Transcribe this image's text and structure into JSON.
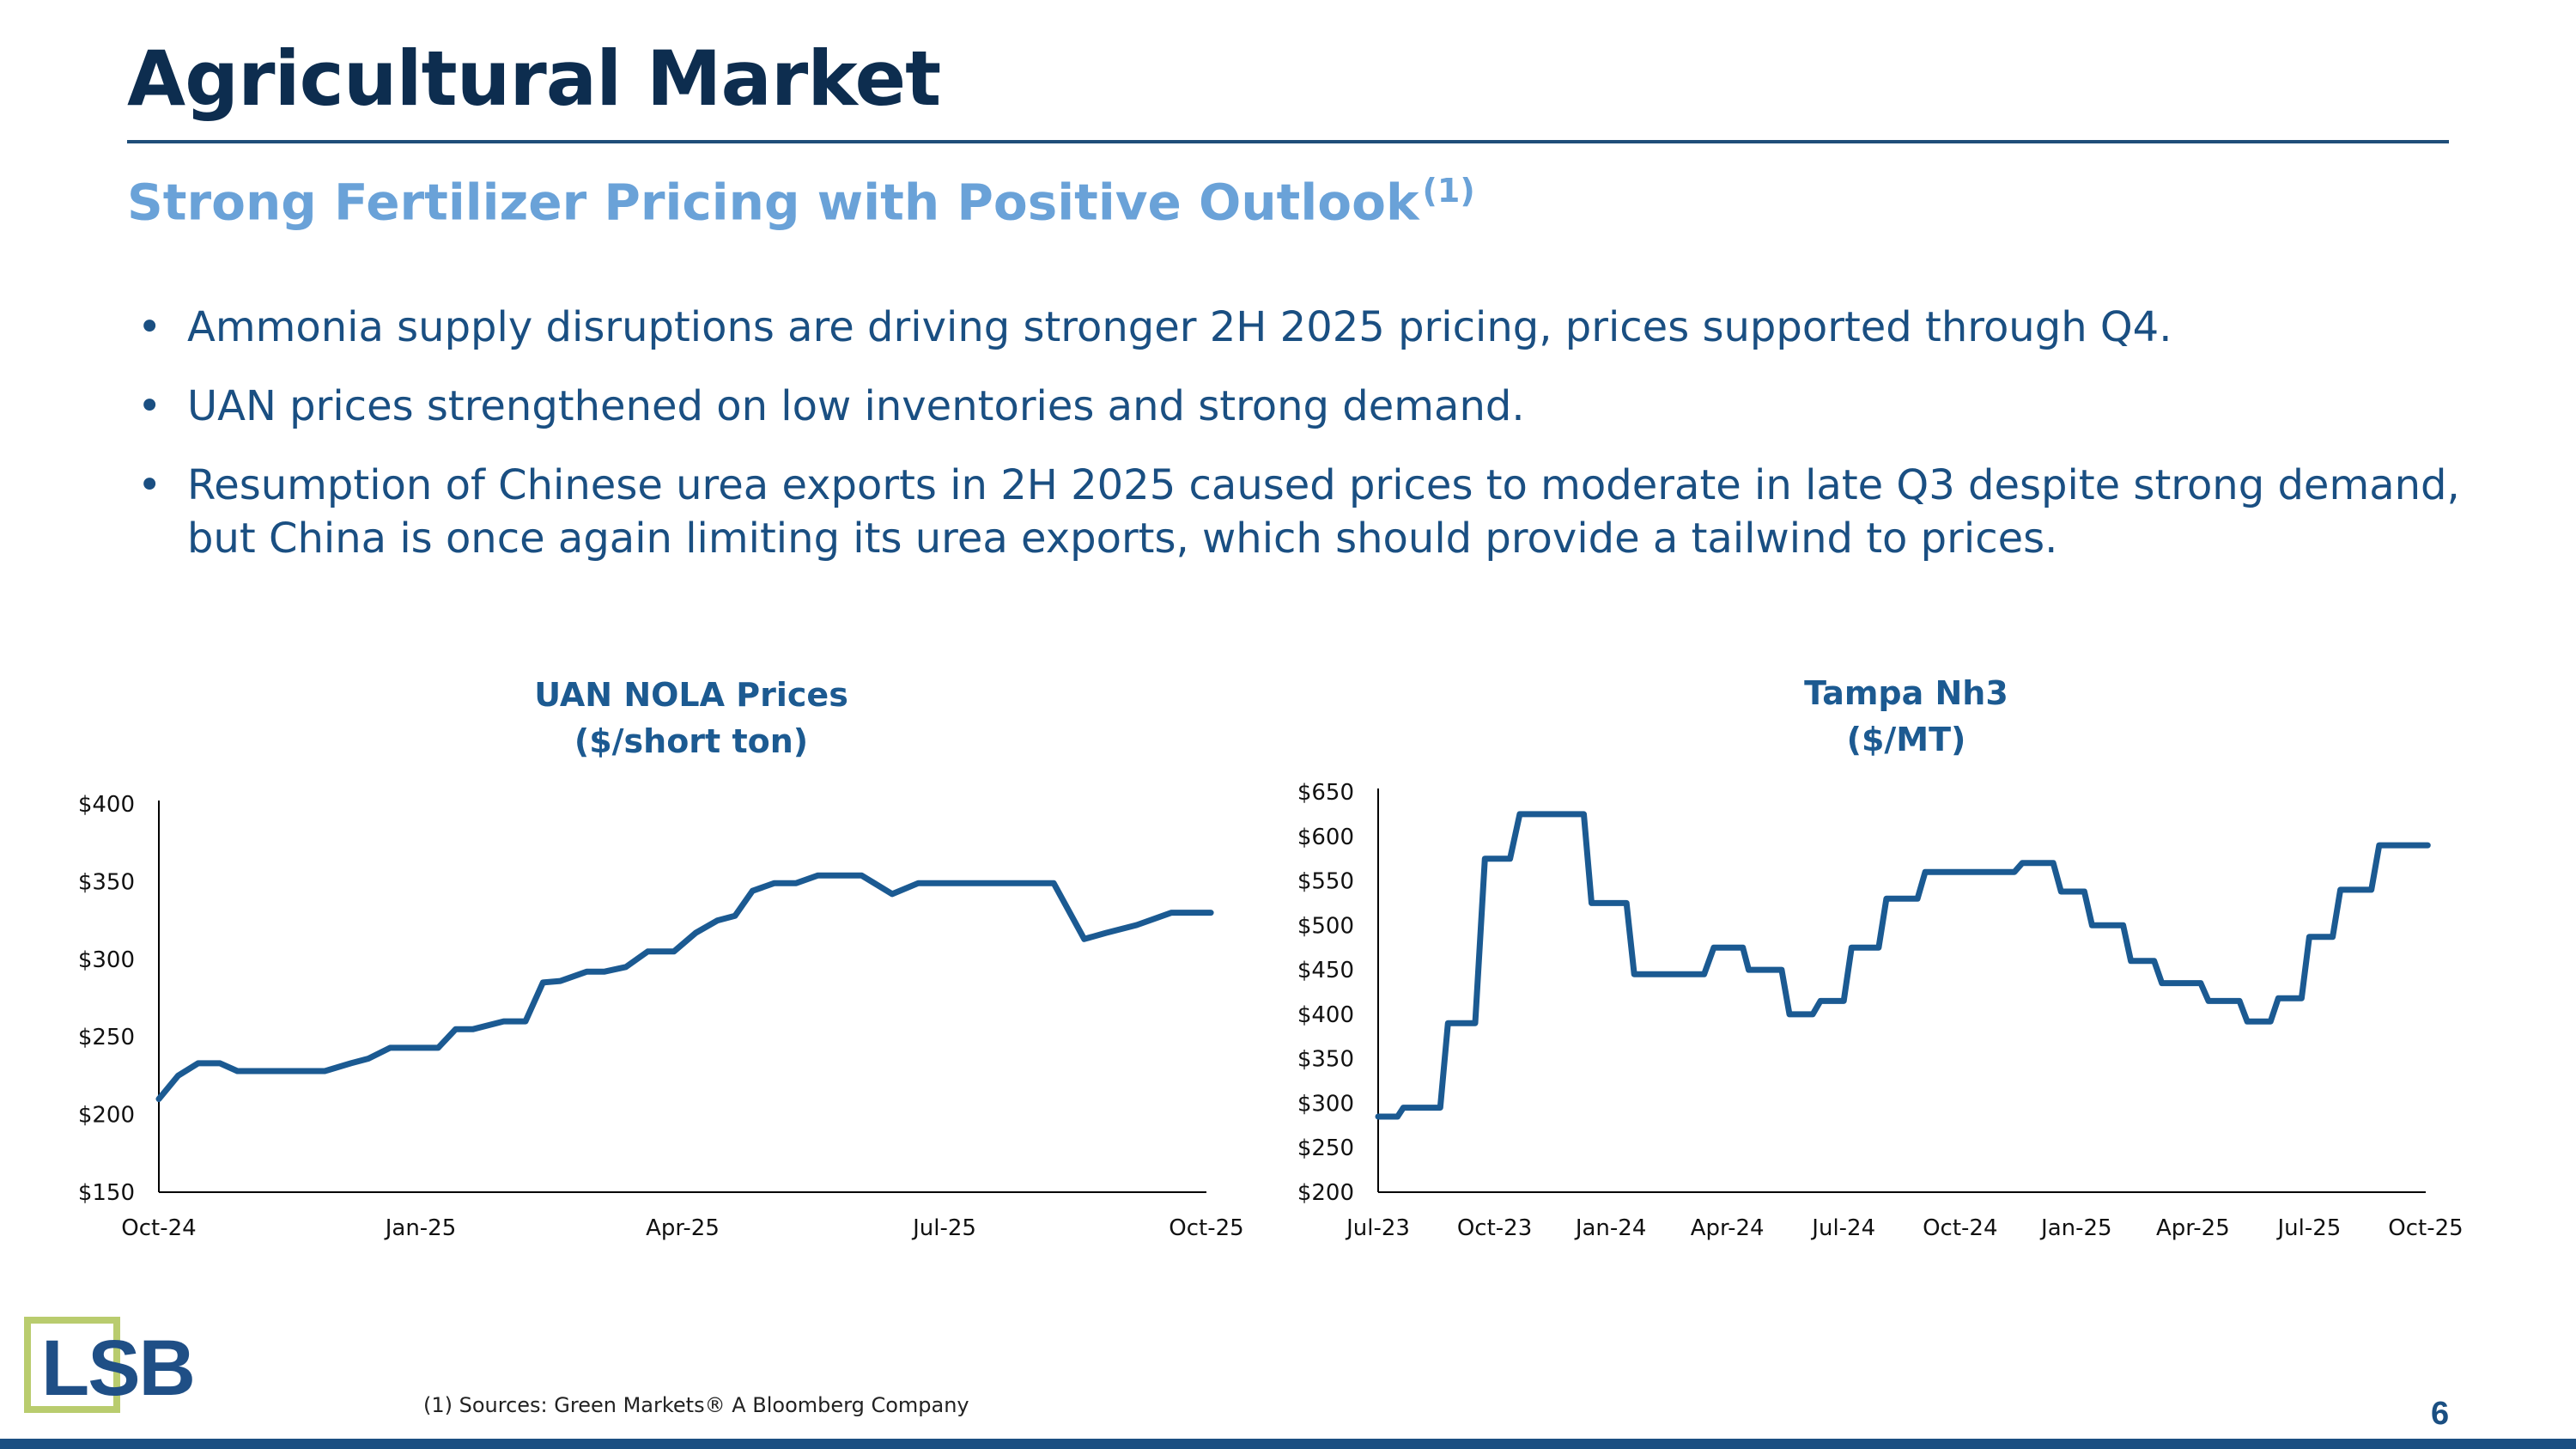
{
  "slide": {
    "title": "Agricultural Market",
    "subtitle": "Strong Fertilizer Pricing with Positive Outlook",
    "subtitle_note": "(1)",
    "bullets": [
      "Ammonia supply disruptions are driving stronger 2H 2025 pricing, prices supported through Q4.",
      "UAN prices strengthened on low inventories and strong demand.",
      "Resumption of Chinese urea exports in 2H 2025 caused prices to moderate in late Q3 despite strong demand, but China is once again limiting its urea exports, which should provide a tailwind to prices."
    ],
    "footnote": "(1)    Sources: Green Markets® A Bloomberg Company",
    "page_number": "6",
    "logo_text": "LSB"
  },
  "colors": {
    "navy": "#0d2d4f",
    "accent_blue": "#6aa2d8",
    "line": "#1b5a92",
    "logo_green": "#b9cc6e"
  },
  "chart_data": [
    {
      "type": "line",
      "title": "UAN NOLA Prices",
      "subtitle": "($/short ton)",
      "xlabel": "",
      "ylabel": "",
      "ylim": [
        150,
        400
      ],
      "y_ticks": [
        150,
        200,
        250,
        300,
        350,
        400
      ],
      "y_tick_labels": [
        "$150",
        "$200",
        "$250",
        "$300",
        "$350",
        "$400"
      ],
      "x_range": [
        0,
        12
      ],
      "x_tick_positions": [
        0,
        3,
        6,
        9,
        12
      ],
      "x_tick_labels": [
        "Oct-24",
        "Jan-25",
        "Apr-25",
        "Jul-25",
        "Oct-25"
      ],
      "series": [
        {
          "name": "UAN NOLA",
          "x": [
            0,
            0.22,
            0.45,
            0.7,
            0.9,
            1.15,
            1.4,
            1.9,
            2.2,
            2.4,
            2.65,
            2.95,
            3.2,
            3.4,
            3.6,
            3.95,
            4.2,
            4.4,
            4.6,
            4.9,
            5.1,
            5.35,
            5.6,
            5.9,
            6.15,
            6.4,
            6.6,
            6.8,
            7.05,
            7.3,
            7.55,
            7.8,
            8.05,
            8.4,
            8.7,
            9.0,
            9.4,
            9.65,
            9.95,
            10.25,
            10.6,
            10.85,
            11.2,
            11.6,
            12.05
          ],
          "y": [
            210,
            225,
            233,
            233,
            228,
            228,
            228,
            228,
            233,
            236,
            243,
            243,
            243,
            255,
            255,
            260,
            260,
            285,
            286,
            292,
            292,
            295,
            305,
            305,
            317,
            325,
            328,
            344,
            349,
            349,
            354,
            354,
            354,
            342,
            349,
            349,
            349,
            349,
            349,
            349,
            313,
            317,
            322,
            330,
            330
          ]
        }
      ]
    },
    {
      "type": "line",
      "title": "Tampa Nh3",
      "subtitle": "($/MT)",
      "xlabel": "",
      "ylabel": "",
      "ylim": [
        200,
        650
      ],
      "y_ticks": [
        200,
        250,
        300,
        350,
        400,
        450,
        500,
        550,
        600,
        650
      ],
      "y_tick_labels": [
        "$200",
        "$250",
        "$300",
        "$350",
        "$400",
        "$450",
        "$500",
        "$550",
        "$600",
        "$650"
      ],
      "x_range": [
        0,
        27
      ],
      "x_tick_positions": [
        0,
        3,
        6,
        9,
        12,
        15,
        18,
        21,
        24,
        27
      ],
      "x_tick_labels": [
        "Jul-23",
        "Oct-23",
        "Jan-24",
        "Apr-24",
        "Jul-24",
        "Oct-24",
        "Jan-25",
        "Apr-25",
        "Jul-25",
        "Oct-25"
      ],
      "series": [
        {
          "name": "Tampa Nh3",
          "x": [
            0,
            0.5,
            0.65,
            1.6,
            1.8,
            2.5,
            2.75,
            3.4,
            3.65,
            5.3,
            5.5,
            6.4,
            6.6,
            8.4,
            8.65,
            9.4,
            9.55,
            10.4,
            10.6,
            11.2,
            11.4,
            12.0,
            12.2,
            12.9,
            13.1,
            13.9,
            14.1,
            14.9,
            15.1,
            16.4,
            16.6,
            17.4,
            17.6,
            18.2,
            18.4,
            19.2,
            19.4,
            20.0,
            20.2,
            21.2,
            21.4,
            22.2,
            22.4,
            23.0,
            23.2,
            23.8,
            24.0,
            24.6,
            24.8,
            25.6,
            25.8,
            26.6,
            26.8,
            27.05
          ],
          "y": [
            285,
            285,
            295,
            295,
            390,
            390,
            575,
            575,
            625,
            625,
            525,
            525,
            445,
            445,
            475,
            475,
            450,
            450,
            400,
            400,
            415,
            415,
            475,
            475,
            530,
            530,
            560,
            560,
            560,
            560,
            570,
            570,
            538,
            538,
            500,
            500,
            460,
            460,
            435,
            435,
            415,
            415,
            392,
            392,
            418,
            418,
            487,
            487,
            540,
            540,
            590,
            590,
            590,
            590
          ]
        }
      ]
    }
  ]
}
